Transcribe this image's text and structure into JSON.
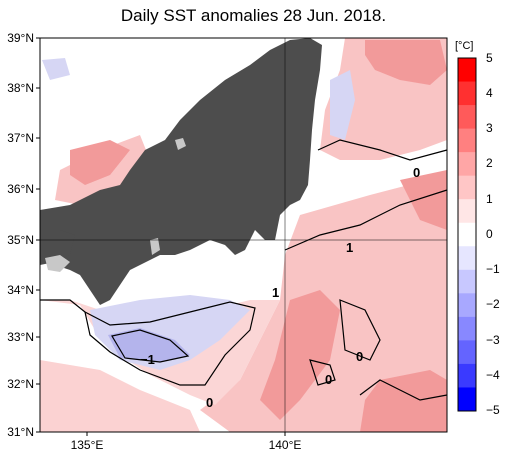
{
  "title": "Daily SST anomalies 28 Jun. 2018.",
  "lat_labels": [
    "39°N",
    "38°N",
    "37°N",
    "36°N",
    "35°N",
    "34°N",
    "33°N",
    "32°N",
    "31°N"
  ],
  "lon_labels": [
    "135°E",
    "140°E"
  ],
  "colorbar": {
    "unit": "[°C]",
    "ticks": [
      "5",
      "4",
      "3",
      "2",
      "1",
      "0",
      "−1",
      "−2",
      "−3",
      "−4",
      "−5"
    ],
    "colors": [
      "#ff0000",
      "#ff3030",
      "#ff5a5a",
      "#ff8080",
      "#ffa6a6",
      "#ffc6c6",
      "#ffe6e6",
      "#ffffff",
      "#e6e6ff",
      "#c8c8ff",
      "#a8a8ff",
      "#8888ff",
      "#6464ff",
      "#3a3aff",
      "#0000ff"
    ]
  },
  "contour_labels": [
    "1",
    "1",
    "0",
    "0",
    "0",
    "−1",
    "0",
    "1"
  ],
  "colors": {
    "land": "#4d4d4d",
    "lake": "#c8c8c8",
    "warm": "#f7b2b2",
    "cool": "#d2d2f2"
  }
}
